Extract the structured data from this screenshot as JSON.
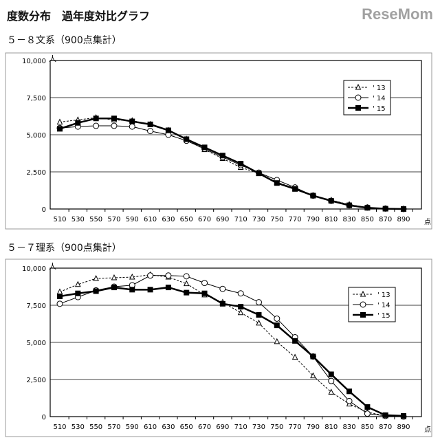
{
  "title": "度数分布　過年度対比グラフ",
  "watermark": "ReseMom",
  "chart_data": [
    {
      "type": "line",
      "title": "５－８文系（900点集計）",
      "ylabel": "人",
      "xlabel": "点",
      "categories": [
        510,
        530,
        550,
        570,
        590,
        610,
        630,
        650,
        670,
        690,
        710,
        730,
        750,
        770,
        790,
        810,
        830,
        850,
        870,
        890
      ],
      "yticks": [
        "0",
        "2,500",
        "5,000",
        "7,500",
        "10,000"
      ],
      "ylim": [
        0,
        10000
      ],
      "grid": true,
      "legend": "top-right",
      "series": [
        {
          "name": "' 13",
          "marker": "triangle",
          "values": [
            5850,
            6000,
            6150,
            6000,
            5950,
            5700,
            5300,
            4700,
            4000,
            3400,
            2800,
            2400,
            1800,
            1400,
            900,
            600,
            300,
            100,
            20,
            0
          ]
        },
        {
          "name": "' 14",
          "marker": "circle",
          "values": [
            5450,
            5550,
            5600,
            5600,
            5550,
            5250,
            5000,
            4600,
            4050,
            3500,
            2950,
            2450,
            1950,
            1450,
            900,
            550,
            250,
            100,
            30,
            0
          ]
        },
        {
          "name": "' 15",
          "marker": "square",
          "values": [
            5400,
            5800,
            6100,
            6100,
            5900,
            5700,
            5300,
            4700,
            4150,
            3600,
            3050,
            2400,
            1750,
            1350,
            900,
            550,
            250,
            80,
            20,
            0
          ]
        }
      ]
    },
    {
      "type": "line",
      "title": "５－７理系（900点集計）",
      "ylabel": "人",
      "xlabel": "点",
      "categories": [
        510,
        530,
        550,
        570,
        590,
        610,
        630,
        650,
        670,
        690,
        710,
        730,
        750,
        770,
        790,
        810,
        830,
        850,
        870,
        890
      ],
      "yticks": [
        "0",
        "2,500",
        "5,000",
        "7,500",
        "10,000"
      ],
      "ylim": [
        0,
        10000
      ],
      "grid": true,
      "legend": "top-right",
      "series": [
        {
          "name": "' 13",
          "marker": "triangle",
          "values": [
            8400,
            8900,
            9300,
            9350,
            9400,
            9550,
            9400,
            8950,
            8200,
            7700,
            7000,
            6300,
            5050,
            4000,
            2750,
            1650,
            850,
            300,
            50,
            0
          ]
        },
        {
          "name": "' 14",
          "marker": "circle",
          "values": [
            7600,
            8050,
            8500,
            8750,
            8850,
            9500,
            9500,
            9450,
            9000,
            8600,
            8300,
            7700,
            6600,
            5350,
            4050,
            2400,
            1050,
            200,
            50,
            0
          ]
        },
        {
          "name": "' 15",
          "marker": "square",
          "values": [
            8100,
            8300,
            8450,
            8700,
            8550,
            8550,
            8700,
            8350,
            8300,
            7600,
            7400,
            6850,
            6150,
            5100,
            4050,
            2850,
            1700,
            650,
            100,
            50
          ]
        }
      ]
    }
  ]
}
